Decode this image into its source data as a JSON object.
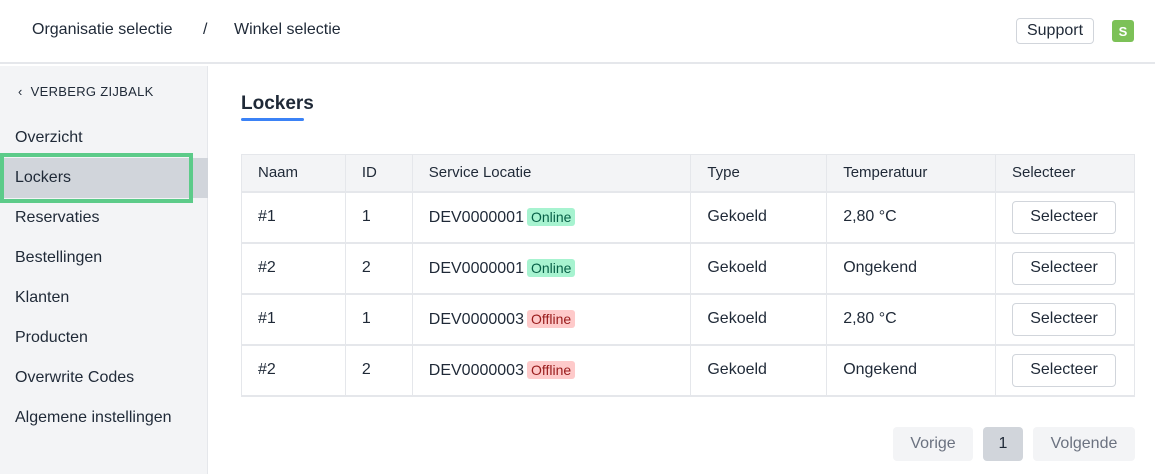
{
  "header": {
    "crumb1": "Organisatie selectie",
    "sep": "/",
    "crumb2": "Winkel selectie",
    "support": "Support",
    "avatar": "S"
  },
  "sidebar": {
    "hide_label": "VERBERG ZIJBALK",
    "items": [
      {
        "label": "Overzicht"
      },
      {
        "label": "Lockers",
        "active": true
      },
      {
        "label": "Reservaties"
      },
      {
        "label": "Bestellingen"
      },
      {
        "label": "Klanten"
      },
      {
        "label": "Producten"
      },
      {
        "label": "Overwrite Codes"
      },
      {
        "label": "Algemene instellingen"
      }
    ]
  },
  "main": {
    "title": "Lockers",
    "columns": [
      "Naam",
      "ID",
      "Service Locatie",
      "Type",
      "Temperatuur",
      "Selecteer"
    ],
    "rows": [
      {
        "naam": "#1",
        "id": "1",
        "locatie": "DEV0000001",
        "status": "Online",
        "type": "Gekoeld",
        "temp": "2,80 °C",
        "button": "Selecteer"
      },
      {
        "naam": "#2",
        "id": "2",
        "locatie": "DEV0000001",
        "status": "Online",
        "type": "Gekoeld",
        "temp": "Ongekend",
        "button": "Selecteer"
      },
      {
        "naam": "#1",
        "id": "1",
        "locatie": "DEV0000003",
        "status": "Offline",
        "type": "Gekoeld",
        "temp": "2,80 °C",
        "button": "Selecteer"
      },
      {
        "naam": "#2",
        "id": "2",
        "locatie": "DEV0000003",
        "status": "Offline",
        "type": "Gekoeld",
        "temp": "Ongekend",
        "button": "Selecteer"
      }
    ]
  },
  "pagination": {
    "prev": "Vorige",
    "page": "1",
    "next": "Volgende"
  },
  "colors": {
    "accent": "#3b82f6",
    "online": "#a7f3d0",
    "offline": "#fecaca",
    "avatar": "#7cc157",
    "focus": "#5ccb89"
  }
}
